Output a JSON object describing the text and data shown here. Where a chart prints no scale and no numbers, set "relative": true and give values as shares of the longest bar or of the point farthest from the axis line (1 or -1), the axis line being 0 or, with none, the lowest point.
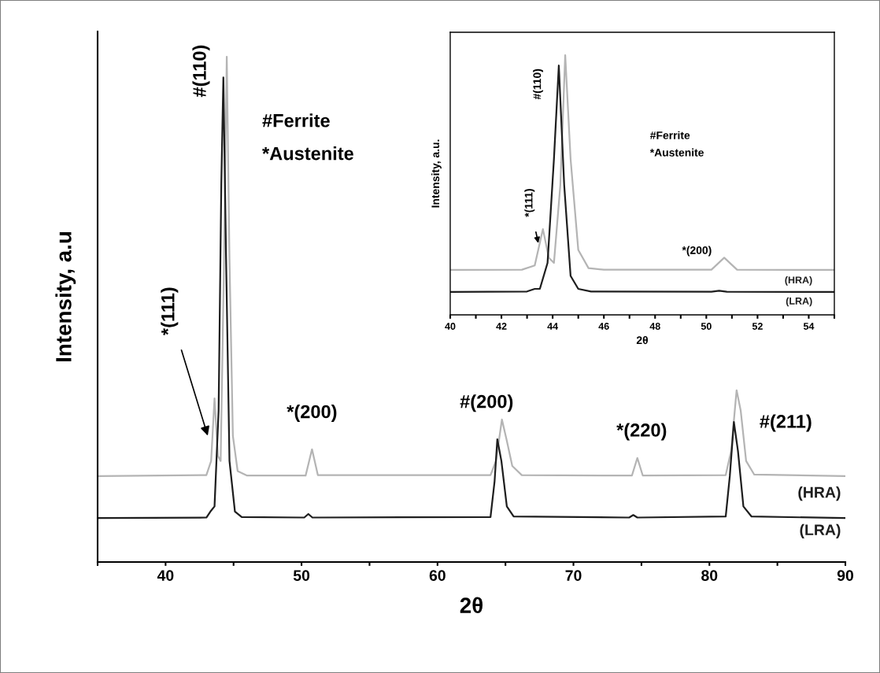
{
  "chart_data": [
    {
      "type": "line",
      "relative": true,
      "xlabel": "2θ",
      "ylabel": "Intensity, a.u",
      "xlim": [
        35,
        90
      ],
      "xticks": [
        {
          "value": 35,
          "label": null
        },
        40,
        {
          "value": 45,
          "label": null
        },
        50,
        {
          "value": 55,
          "label": null
        },
        60,
        {
          "value": 65,
          "label": null
        },
        70,
        {
          "value": 75,
          "label": null
        },
        80,
        {
          "value": 85,
          "label": null
        },
        90
      ],
      "series": [
        {
          "name": "(HRA)",
          "color": "#b4b4b4",
          "x": [
            35.1,
            43.0,
            43.35,
            43.6,
            43.85,
            44.05,
            44.3,
            44.5,
            44.7,
            44.95,
            45.3,
            46,
            50.3,
            50.77,
            51.2,
            63.9,
            64.3,
            64.74,
            65.1,
            65.5,
            66.2,
            74.3,
            74.7,
            75.1,
            81.2,
            81.6,
            82.0,
            82.3,
            82.7,
            83.3,
            90
          ],
          "values": [
            0.17,
            0.172,
            0.2,
            0.324,
            0.21,
            0.2,
            0.6,
            1.0,
            0.6,
            0.25,
            0.18,
            0.171,
            0.171,
            0.223,
            0.172,
            0.172,
            0.2,
            0.282,
            0.24,
            0.19,
            0.172,
            0.171,
            0.206,
            0.171,
            0.172,
            0.22,
            0.34,
            0.3,
            0.2,
            0.173,
            0.17
          ]
        },
        {
          "name": "(LRA)",
          "color": "#1e1e1e",
          "x": [
            35.1,
            43.0,
            43.3,
            43.6,
            43.9,
            44.1,
            44.25,
            44.45,
            44.7,
            45.1,
            45.6,
            50.2,
            50.5,
            50.8,
            63.9,
            64.2,
            64.4,
            64.7,
            65.1,
            65.6,
            74.1,
            74.4,
            74.7,
            81.2,
            81.5,
            81.8,
            82.1,
            82.5,
            83.1,
            90
          ],
          "values": [
            0.087,
            0.088,
            0.1,
            0.11,
            0.3,
            0.75,
            0.959,
            0.6,
            0.2,
            0.1,
            0.089,
            0.088,
            0.095,
            0.088,
            0.089,
            0.16,
            0.243,
            0.2,
            0.11,
            0.09,
            0.088,
            0.093,
            0.088,
            0.09,
            0.17,
            0.277,
            0.22,
            0.11,
            0.09,
            0.087
          ]
        }
      ],
      "annotations": [
        {
          "text": "#(110)",
          "x": 44.3,
          "y": 1.0
        },
        {
          "text": "*(111)",
          "x": 43.1,
          "y": 0.25
        },
        {
          "text": "*(200)",
          "x": 50.77,
          "y": 0.223
        },
        {
          "text": "#(200)",
          "x": 64.74,
          "y": 0.282
        },
        {
          "text": "*(220)",
          "x": 74.7,
          "y": 0.206
        },
        {
          "text": "#(211)",
          "x": 82.0,
          "y": 0.34
        },
        "#Ferrite",
        "*Austenite"
      ]
    },
    {
      "type": "line",
      "relative": true,
      "xlabel": "2θ",
      "ylabel": "Intensity, a.u.",
      "xlim": [
        40,
        55
      ],
      "xticks": [
        40,
        {
          "value": 41,
          "label": null
        },
        42,
        {
          "value": 43,
          "label": null
        },
        44,
        {
          "value": 45,
          "label": null
        },
        46,
        {
          "value": 47,
          "label": null
        },
        48,
        {
          "value": 49,
          "label": null
        },
        50,
        {
          "value": 51,
          "label": null
        },
        52,
        {
          "value": 53,
          "label": null
        },
        54,
        {
          "value": 55,
          "label": null
        }
      ],
      "series": [
        {
          "name": "(HRA)",
          "color": "#b4b4b4",
          "x": [
            40,
            42.8,
            43.3,
            43.62,
            43.85,
            44.05,
            44.3,
            44.49,
            44.7,
            45.0,
            45.4,
            46,
            50.2,
            50.7,
            51.2,
            55
          ],
          "values": [
            0.173,
            0.174,
            0.19,
            0.33,
            0.22,
            0.2,
            0.5,
            1.0,
            0.6,
            0.25,
            0.18,
            0.174,
            0.174,
            0.22,
            0.174,
            0.173
          ]
        },
        {
          "name": "(LRA)",
          "color": "#1e1e1e",
          "x": [
            40,
            43.0,
            43.3,
            43.5,
            43.8,
            44.05,
            44.24,
            44.45,
            44.7,
            45.0,
            45.5,
            50.2,
            50.5,
            50.8,
            55
          ],
          "values": [
            0.088,
            0.09,
            0.1,
            0.1,
            0.2,
            0.6,
            0.96,
            0.5,
            0.15,
            0.1,
            0.09,
            0.089,
            0.093,
            0.089,
            0.088
          ]
        }
      ],
      "annotations": [
        {
          "text": "#(110)",
          "x": 44.24,
          "y": 0.96
        },
        {
          "text": "*(111)",
          "x": 43.44,
          "y": 0.276
        },
        {
          "text": "*(200)",
          "x": 50.7,
          "y": 0.22
        },
        "#Ferrite",
        "*Austenite"
      ]
    }
  ]
}
